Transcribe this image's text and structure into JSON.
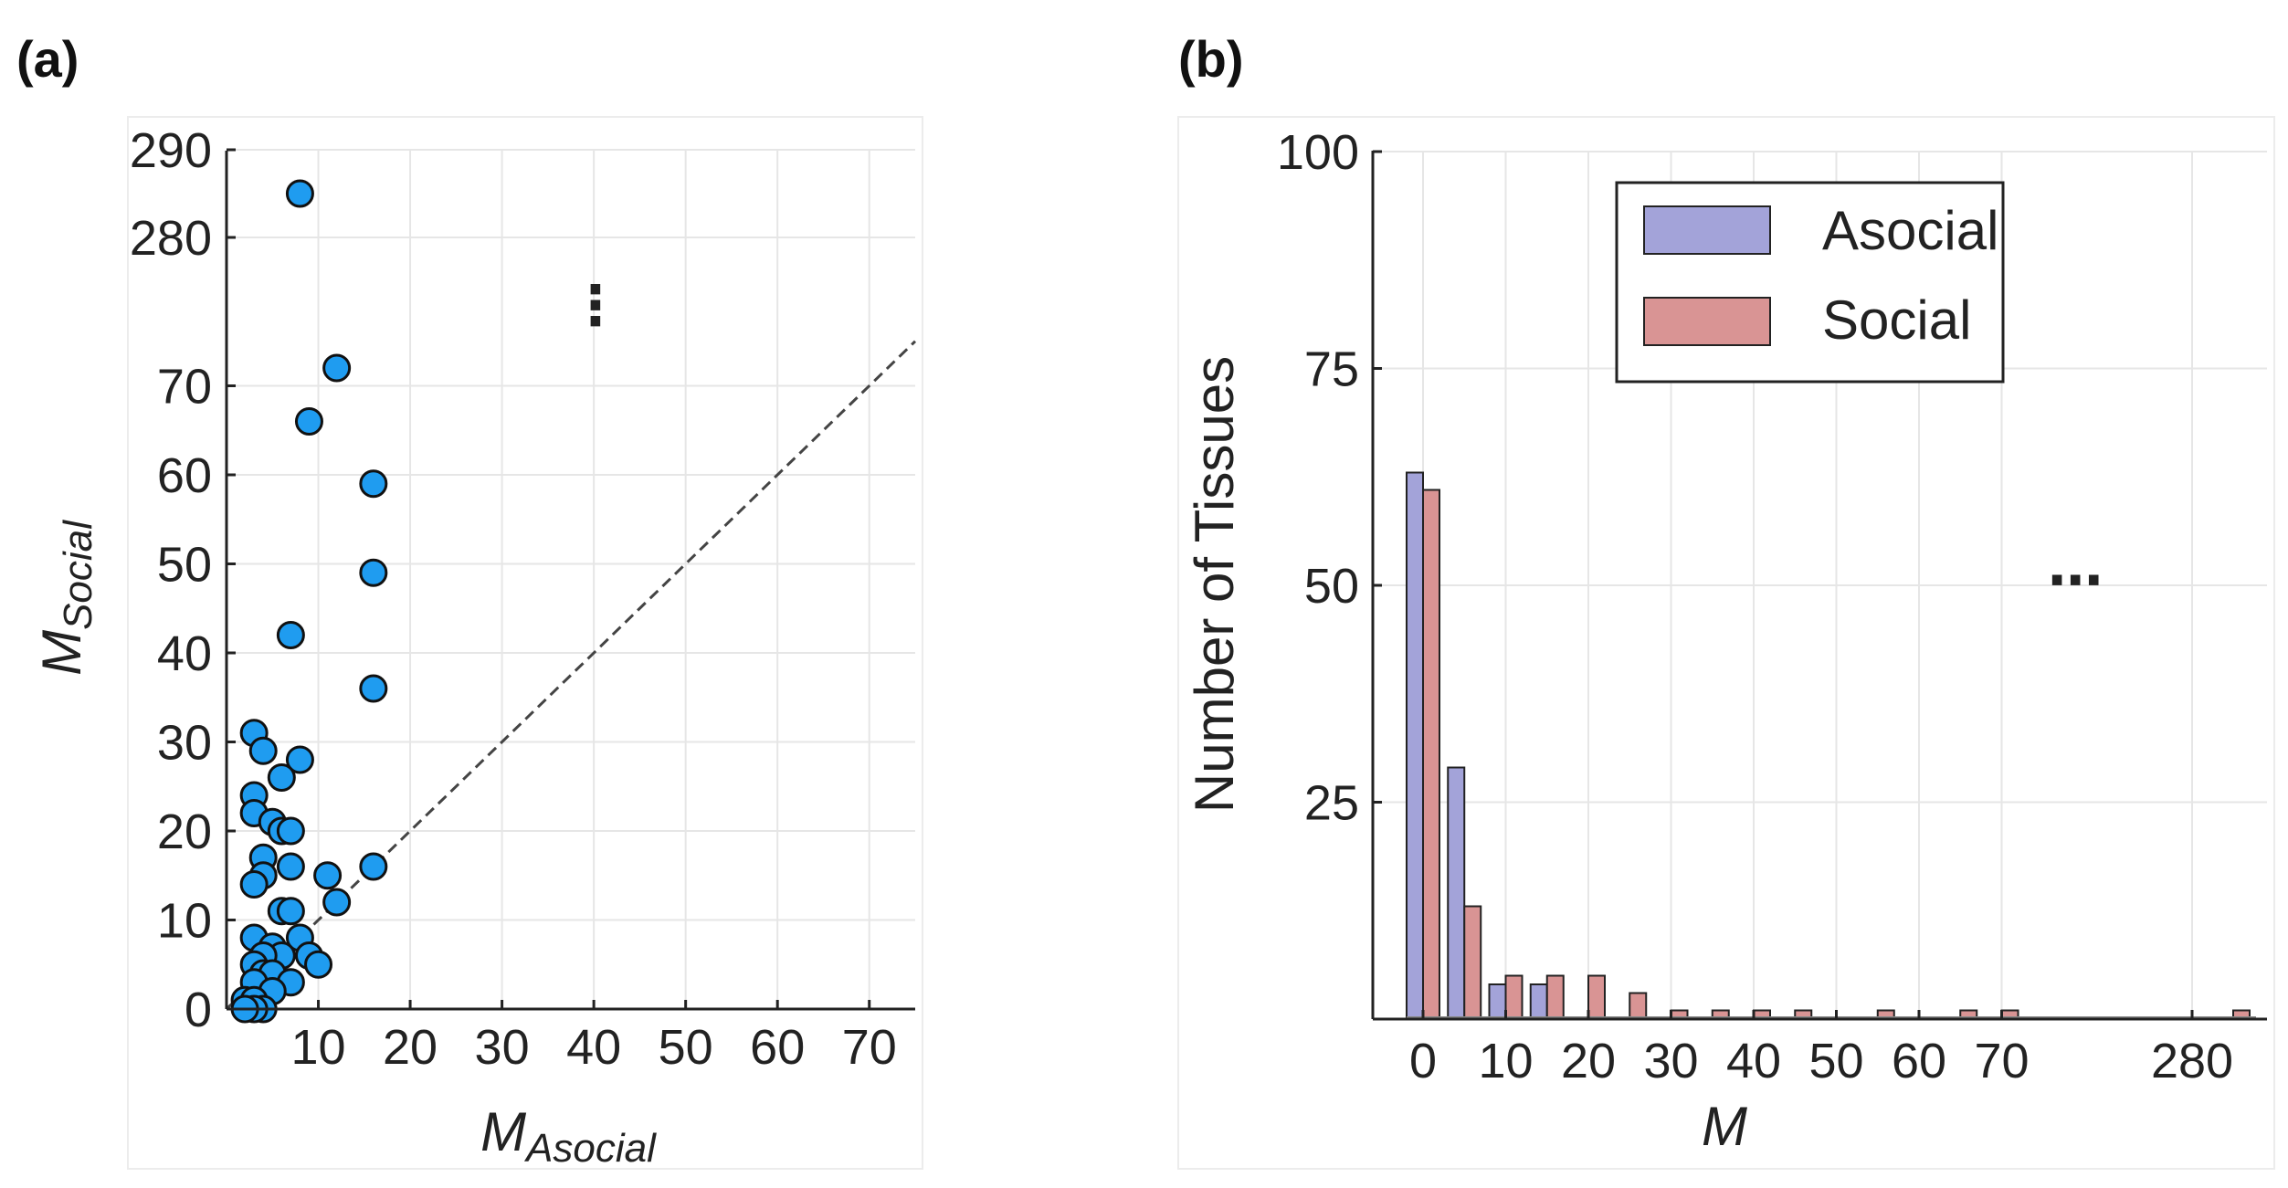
{
  "figure": {
    "panel_a_label": "(a)",
    "panel_b_label": "(b)"
  },
  "chart_data": [
    {
      "type": "scatter",
      "panel": "(a)",
      "title": "",
      "xlabel": "M",
      "xlabel_sub": "Asocial",
      "ylabel": "M",
      "ylabel_sub": "Social",
      "xlim": [
        0,
        75
      ],
      "ylim": [
        0,
        290
      ],
      "y_axis_break": "between 70 and 280",
      "xticks": [
        "10",
        "20",
        "30",
        "40",
        "50",
        "60",
        "70"
      ],
      "yticks": [
        "0",
        "10",
        "20",
        "30",
        "40",
        "50",
        "60",
        "70",
        "280",
        "290"
      ],
      "ellipsis": "⋮",
      "diagonal_line": "y = x (dashed)",
      "marker_color": "#1f9cf0",
      "grid": true,
      "points": [
        {
          "x": 8,
          "y": 285
        },
        {
          "x": 12,
          "y": 72
        },
        {
          "x": 9,
          "y": 66
        },
        {
          "x": 16,
          "y": 59
        },
        {
          "x": 16,
          "y": 49
        },
        {
          "x": 7,
          "y": 42
        },
        {
          "x": 16,
          "y": 36
        },
        {
          "x": 3,
          "y": 31
        },
        {
          "x": 4,
          "y": 29
        },
        {
          "x": 8,
          "y": 28
        },
        {
          "x": 6,
          "y": 26
        },
        {
          "x": 3,
          "y": 24
        },
        {
          "x": 3,
          "y": 22
        },
        {
          "x": 5,
          "y": 21
        },
        {
          "x": 6,
          "y": 20
        },
        {
          "x": 7,
          "y": 20
        },
        {
          "x": 4,
          "y": 17
        },
        {
          "x": 7,
          "y": 16
        },
        {
          "x": 16,
          "y": 16
        },
        {
          "x": 4,
          "y": 15
        },
        {
          "x": 11,
          "y": 15
        },
        {
          "x": 3,
          "y": 14
        },
        {
          "x": 12,
          "y": 12
        },
        {
          "x": 6,
          "y": 11
        },
        {
          "x": 7,
          "y": 11
        },
        {
          "x": 8,
          "y": 8
        },
        {
          "x": 3,
          "y": 8
        },
        {
          "x": 5,
          "y": 7
        },
        {
          "x": 6,
          "y": 6
        },
        {
          "x": 9,
          "y": 6
        },
        {
          "x": 4,
          "y": 6
        },
        {
          "x": 3,
          "y": 5
        },
        {
          "x": 10,
          "y": 5
        },
        {
          "x": 4,
          "y": 4
        },
        {
          "x": 5,
          "y": 4
        },
        {
          "x": 7,
          "y": 3
        },
        {
          "x": 3,
          "y": 3
        },
        {
          "x": 5,
          "y": 2
        },
        {
          "x": 2,
          "y": 1
        },
        {
          "x": 3,
          "y": 1
        },
        {
          "x": 4,
          "y": 0
        },
        {
          "x": 3,
          "y": 0
        },
        {
          "x": 2,
          "y": 0
        }
      ]
    },
    {
      "type": "bar",
      "panel": "(b)",
      "title": "",
      "xlabel": "M",
      "ylabel": "Number of Tissues",
      "ylim": [
        0,
        100
      ],
      "yticks": [
        "25",
        "50",
        "75",
        "100"
      ],
      "xticks": [
        "0",
        "10",
        "20",
        "30",
        "40",
        "50",
        "60",
        "70",
        "280"
      ],
      "x_axis_break": "between 70 and 280",
      "ellipsis": "⋯",
      "bin_width": 5,
      "grid": true,
      "legend_position": "top-right",
      "series": [
        {
          "name": "Asocial",
          "color": "#a3a3d9",
          "bins": [
            0,
            5,
            10,
            15
          ],
          "values": [
            63,
            29,
            4,
            4
          ]
        },
        {
          "name": "Social",
          "color": "#d99494",
          "bins": [
            0,
            5,
            10,
            15,
            20,
            25,
            30,
            35,
            40,
            45,
            55,
            65,
            70,
            285
          ],
          "values": [
            61,
            13,
            5,
            5,
            5,
            3,
            1,
            1,
            1,
            1,
            1,
            1,
            1,
            1
          ]
        }
      ]
    }
  ]
}
